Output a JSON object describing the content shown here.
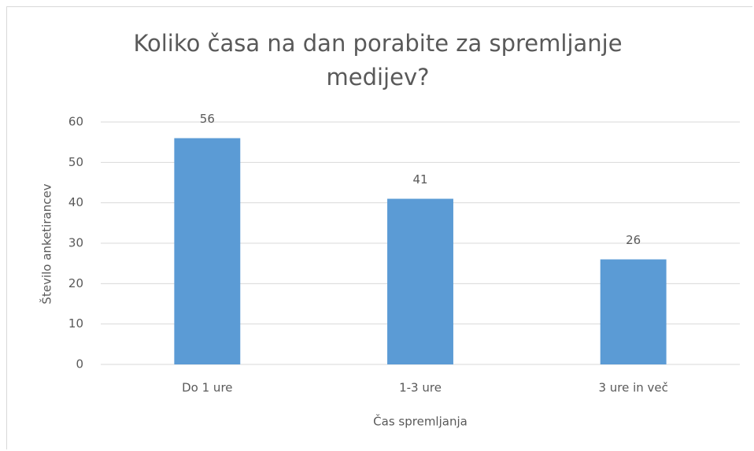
{
  "chart_data": {
    "type": "bar",
    "title": "Koliko časa na dan porabite za spremljanje medijev?",
    "x_label": "Čas spremljanja",
    "y_label": "Število anketirancev",
    "categories": [
      "Do 1 ure",
      "1-3 ure",
      "3 ure in več"
    ],
    "values": [
      56,
      41,
      26
    ],
    "color": "#5b9bd5",
    "ylim": [
      0,
      60
    ],
    "yticks": [
      0,
      10,
      20,
      30,
      40,
      50,
      60
    ],
    "grid": true
  }
}
